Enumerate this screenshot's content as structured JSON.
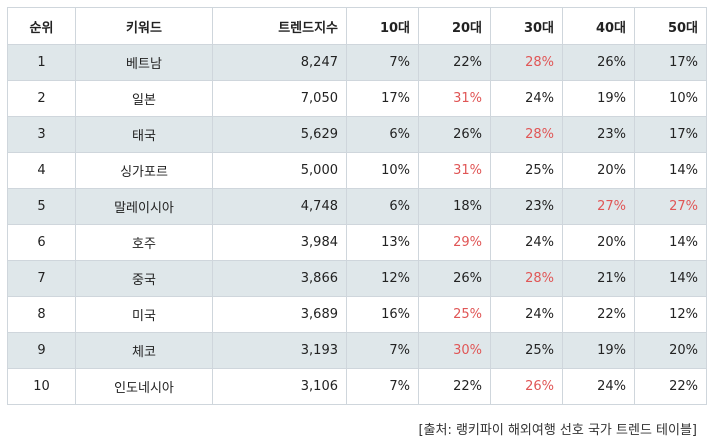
{
  "table": {
    "headers": [
      "순위",
      "키워드",
      "트렌드지수",
      "10대",
      "20대",
      "30대",
      "40대",
      "50대"
    ],
    "highlight_color": "#e05656",
    "shaded_row_color": "#dfe7ea",
    "rows": [
      {
        "rank": "1",
        "keyword": "베트남",
        "index": "8,247",
        "t10": "7%",
        "t20": "22%",
        "t30": "28%",
        "t40": "26%",
        "t50": "17%",
        "highlight": [
          "t30"
        ]
      },
      {
        "rank": "2",
        "keyword": "일본",
        "index": "7,050",
        "t10": "17%",
        "t20": "31%",
        "t30": "24%",
        "t40": "19%",
        "t50": "10%",
        "highlight": [
          "t20"
        ]
      },
      {
        "rank": "3",
        "keyword": "태국",
        "index": "5,629",
        "t10": "6%",
        "t20": "26%",
        "t30": "28%",
        "t40": "23%",
        "t50": "17%",
        "highlight": [
          "t30"
        ]
      },
      {
        "rank": "4",
        "keyword": "싱가포르",
        "index": "5,000",
        "t10": "10%",
        "t20": "31%",
        "t30": "25%",
        "t40": "20%",
        "t50": "14%",
        "highlight": [
          "t20"
        ]
      },
      {
        "rank": "5",
        "keyword": "말레이시아",
        "index": "4,748",
        "t10": "6%",
        "t20": "18%",
        "t30": "23%",
        "t40": "27%",
        "t50": "27%",
        "highlight": [
          "t40",
          "t50"
        ]
      },
      {
        "rank": "6",
        "keyword": "호주",
        "index": "3,984",
        "t10": "13%",
        "t20": "29%",
        "t30": "24%",
        "t40": "20%",
        "t50": "14%",
        "highlight": [
          "t20"
        ]
      },
      {
        "rank": "7",
        "keyword": "중국",
        "index": "3,866",
        "t10": "12%",
        "t20": "26%",
        "t30": "28%",
        "t40": "21%",
        "t50": "14%",
        "highlight": [
          "t30"
        ]
      },
      {
        "rank": "8",
        "keyword": "미국",
        "index": "3,689",
        "t10": "16%",
        "t20": "25%",
        "t30": "24%",
        "t40": "22%",
        "t50": "12%",
        "highlight": [
          "t20"
        ]
      },
      {
        "rank": "9",
        "keyword": "체코",
        "index": "3,193",
        "t10": "7%",
        "t20": "30%",
        "t30": "25%",
        "t40": "19%",
        "t50": "20%",
        "highlight": [
          "t20"
        ]
      },
      {
        "rank": "10",
        "keyword": "인도네시아",
        "index": "3,106",
        "t10": "7%",
        "t20": "22%",
        "t30": "26%",
        "t40": "24%",
        "t50": "22%",
        "highlight": [
          "t30"
        ]
      }
    ]
  },
  "source": "[출처: 랭키파이 해외여행 선호 국가 트렌드 테이블]"
}
